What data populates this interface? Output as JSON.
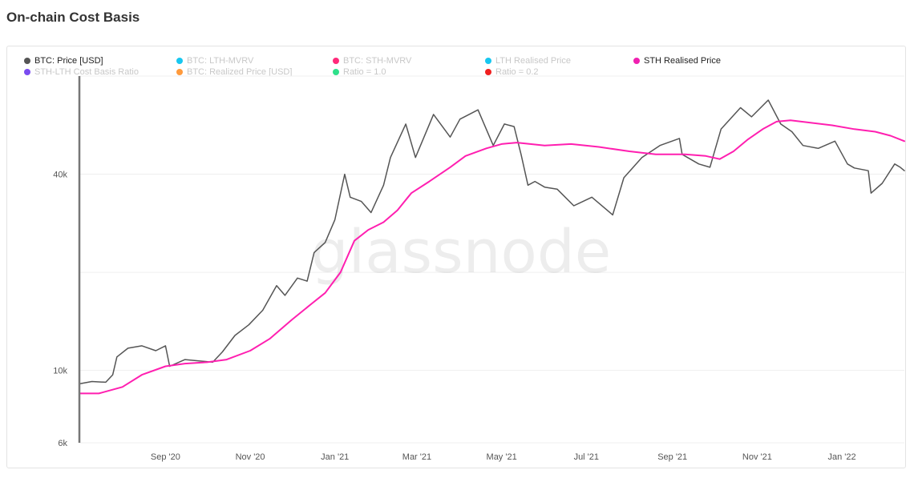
{
  "page": {
    "title": "On-chain Cost Basis"
  },
  "legend": [
    {
      "label": "BTC: Price [USD]",
      "color": "#555555",
      "active": true
    },
    {
      "label": "BTC: LTH-MVRV",
      "color": "#18c7f0",
      "active": false
    },
    {
      "label": "BTC: STH-MVRV",
      "color": "#ff2a7a",
      "active": false
    },
    {
      "label": "LTH Realised Price",
      "color": "#18c7f0",
      "active": false
    },
    {
      "label": "STH Realised Price",
      "color": "#f020b0",
      "active": true
    },
    {
      "label": "STH-LTH Cost Basis Ratio",
      "color": "#7a4cf0",
      "active": false
    },
    {
      "label": "BTC: Realized Price [USD]",
      "color": "#ff9a3c",
      "active": false
    },
    {
      "label": "Ratio = 1.0",
      "color": "#2ee08a",
      "active": false
    },
    {
      "label": "Ratio = 0.2",
      "color": "#f02020",
      "active": false
    }
  ],
  "watermark": "glassnode",
  "chart_data": {
    "type": "line",
    "title": "On-chain Cost Basis",
    "yscale": "log",
    "ylim": [
      6000,
      80000
    ],
    "y_ticks": [
      {
        "value": 6000,
        "label": "6k"
      },
      {
        "value": 10000,
        "label": "10k"
      },
      {
        "value": 40000,
        "label": "40k"
      }
    ],
    "x_tick_labels": [
      "Sep '20",
      "Nov '20",
      "Jan '21",
      "Mar '21",
      "May '21",
      "Jul '21",
      "Sep '21",
      "Nov '21",
      "Jan '22"
    ],
    "x_tick_dates": [
      "2020-09-01",
      "2020-11-01",
      "2021-01-01",
      "2021-03-01",
      "2021-05-01",
      "2021-07-01",
      "2021-09-01",
      "2021-11-01",
      "2022-01-01"
    ],
    "xlim": [
      "2020-07-01",
      "2022-02-15"
    ],
    "grid": true,
    "legend_position": "top-left",
    "series": [
      {
        "name": "BTC: Price [USD]",
        "color": "#555555",
        "points": [
          [
            "2020-07-01",
            9100
          ],
          [
            "2020-07-10",
            9250
          ],
          [
            "2020-07-20",
            9200
          ],
          [
            "2020-07-25",
            9700
          ],
          [
            "2020-07-28",
            11000
          ],
          [
            "2020-08-05",
            11700
          ],
          [
            "2020-08-15",
            11900
          ],
          [
            "2020-08-25",
            11500
          ],
          [
            "2020-09-01",
            11900
          ],
          [
            "2020-09-04",
            10300
          ],
          [
            "2020-09-15",
            10800
          ],
          [
            "2020-09-25",
            10700
          ],
          [
            "2020-10-05",
            10600
          ],
          [
            "2020-10-12",
            11400
          ],
          [
            "2020-10-21",
            12800
          ],
          [
            "2020-10-31",
            13800
          ],
          [
            "2020-11-10",
            15300
          ],
          [
            "2020-11-20",
            18200
          ],
          [
            "2020-11-26",
            17000
          ],
          [
            "2020-12-05",
            19200
          ],
          [
            "2020-12-12",
            18800
          ],
          [
            "2020-12-17",
            23000
          ],
          [
            "2020-12-25",
            24700
          ],
          [
            "2021-01-01",
            29000
          ],
          [
            "2021-01-08",
            40000
          ],
          [
            "2021-01-12",
            34000
          ],
          [
            "2021-01-20",
            33000
          ],
          [
            "2021-01-27",
            30500
          ],
          [
            "2021-02-05",
            37000
          ],
          [
            "2021-02-10",
            45000
          ],
          [
            "2021-02-21",
            57000
          ],
          [
            "2021-02-28",
            45000
          ],
          [
            "2021-03-13",
            61000
          ],
          [
            "2021-03-25",
            52000
          ],
          [
            "2021-04-01",
            59000
          ],
          [
            "2021-04-14",
            63000
          ],
          [
            "2021-04-25",
            49000
          ],
          [
            "2021-05-03",
            57000
          ],
          [
            "2021-05-10",
            56000
          ],
          [
            "2021-05-15",
            46000
          ],
          [
            "2021-05-20",
            37000
          ],
          [
            "2021-05-25",
            38000
          ],
          [
            "2021-06-01",
            36500
          ],
          [
            "2021-06-10",
            36000
          ],
          [
            "2021-06-22",
            32000
          ],
          [
            "2021-07-05",
            34000
          ],
          [
            "2021-07-20",
            30000
          ],
          [
            "2021-07-28",
            39000
          ],
          [
            "2021-08-10",
            45000
          ],
          [
            "2021-08-23",
            49000
          ],
          [
            "2021-09-06",
            51500
          ],
          [
            "2021-09-08",
            46000
          ],
          [
            "2021-09-20",
            43000
          ],
          [
            "2021-09-28",
            42000
          ],
          [
            "2021-10-06",
            55000
          ],
          [
            "2021-10-20",
            64000
          ],
          [
            "2021-10-28",
            60000
          ],
          [
            "2021-11-09",
            67500
          ],
          [
            "2021-11-18",
            57000
          ],
          [
            "2021-11-26",
            54000
          ],
          [
            "2021-12-04",
            49000
          ],
          [
            "2021-12-15",
            48000
          ],
          [
            "2021-12-27",
            50500
          ],
          [
            "2022-01-05",
            43000
          ],
          [
            "2022-01-10",
            41800
          ],
          [
            "2022-01-20",
            41000
          ],
          [
            "2022-01-22",
            35000
          ],
          [
            "2022-01-30",
            37500
          ],
          [
            "2022-02-08",
            43000
          ],
          [
            "2022-02-12",
            42000
          ],
          [
            "2022-02-15",
            41000
          ]
        ]
      },
      {
        "name": "STH Realised Price",
        "color": "#ff1fb0",
        "points": [
          [
            "2020-07-01",
            8500
          ],
          [
            "2020-07-15",
            8500
          ],
          [
            "2020-08-01",
            8900
          ],
          [
            "2020-08-15",
            9700
          ],
          [
            "2020-09-01",
            10300
          ],
          [
            "2020-09-15",
            10500
          ],
          [
            "2020-10-01",
            10600
          ],
          [
            "2020-10-15",
            10800
          ],
          [
            "2020-11-01",
            11500
          ],
          [
            "2020-11-15",
            12500
          ],
          [
            "2020-12-01",
            14300
          ],
          [
            "2020-12-15",
            16000
          ],
          [
            "2020-12-25",
            17300
          ],
          [
            "2021-01-05",
            20000
          ],
          [
            "2021-01-15",
            25000
          ],
          [
            "2021-01-25",
            27000
          ],
          [
            "2021-02-05",
            28500
          ],
          [
            "2021-02-15",
            31000
          ],
          [
            "2021-02-25",
            35000
          ],
          [
            "2021-03-10",
            38000
          ],
          [
            "2021-03-25",
            42000
          ],
          [
            "2021-04-05",
            45500
          ],
          [
            "2021-04-20",
            48000
          ],
          [
            "2021-05-01",
            49500
          ],
          [
            "2021-05-12",
            50000
          ],
          [
            "2021-06-01",
            49000
          ],
          [
            "2021-06-20",
            49500
          ],
          [
            "2021-07-10",
            48500
          ],
          [
            "2021-08-01",
            47000
          ],
          [
            "2021-08-20",
            46000
          ],
          [
            "2021-09-10",
            46000
          ],
          [
            "2021-09-25",
            45500
          ],
          [
            "2021-10-05",
            44500
          ],
          [
            "2021-10-15",
            47000
          ],
          [
            "2021-10-25",
            51000
          ],
          [
            "2021-11-05",
            55000
          ],
          [
            "2021-11-15",
            58000
          ],
          [
            "2021-11-25",
            58500
          ],
          [
            "2021-12-10",
            57500
          ],
          [
            "2021-12-25",
            56500
          ],
          [
            "2022-01-10",
            55000
          ],
          [
            "2022-01-25",
            54000
          ],
          [
            "2022-02-05",
            52500
          ],
          [
            "2022-02-15",
            50500
          ]
        ]
      }
    ]
  }
}
